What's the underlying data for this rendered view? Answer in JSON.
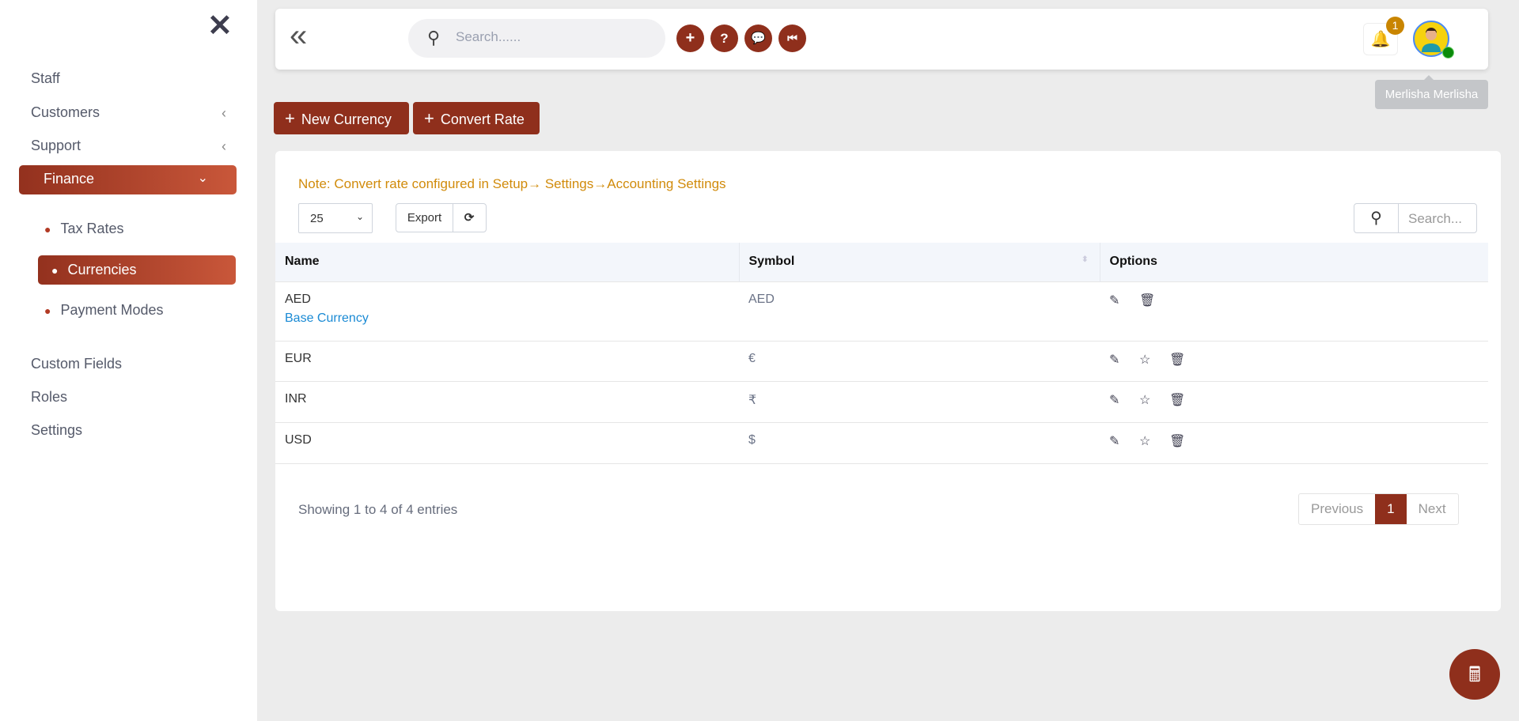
{
  "sidebar": {
    "items": [
      {
        "label": "Staff"
      },
      {
        "label": "Customers"
      },
      {
        "label": "Support"
      },
      {
        "label": "Finance"
      },
      {
        "label": "Custom Fields"
      },
      {
        "label": "Roles"
      },
      {
        "label": "Settings"
      }
    ],
    "finance_sub": [
      {
        "label": "Tax Rates"
      },
      {
        "label": "Currencies"
      },
      {
        "label": "Payment Modes"
      }
    ]
  },
  "header": {
    "search_placeholder": "Search......",
    "user_name": "Merlisha Merlisha",
    "notification_count": "1"
  },
  "toolbar": {
    "new_currency": "New Currency",
    "convert_rate": "Convert Rate"
  },
  "card": {
    "note": "Note: Convert rate configured in Setup→ Settings→Accounting Settings",
    "page_length": "25",
    "export": "Export",
    "search_placeholder": "Search..."
  },
  "table": {
    "columns": [
      "Name",
      "Symbol",
      "Options"
    ],
    "rows": [
      {
        "name": "AED",
        "tag": "Base Currency",
        "symbol": "AED"
      },
      {
        "name": "EUR",
        "symbol": "€"
      },
      {
        "name": "INR",
        "symbol": "₹"
      },
      {
        "name": "USD",
        "symbol": "$"
      }
    ]
  },
  "footer": {
    "info": "Showing 1 to 4 of 4 entries",
    "previous": "Previous",
    "page": "1",
    "next": "Next"
  },
  "colors": {
    "brand": "#8f2f1c",
    "note": "#d18b0b",
    "link": "#1a8ad4"
  }
}
